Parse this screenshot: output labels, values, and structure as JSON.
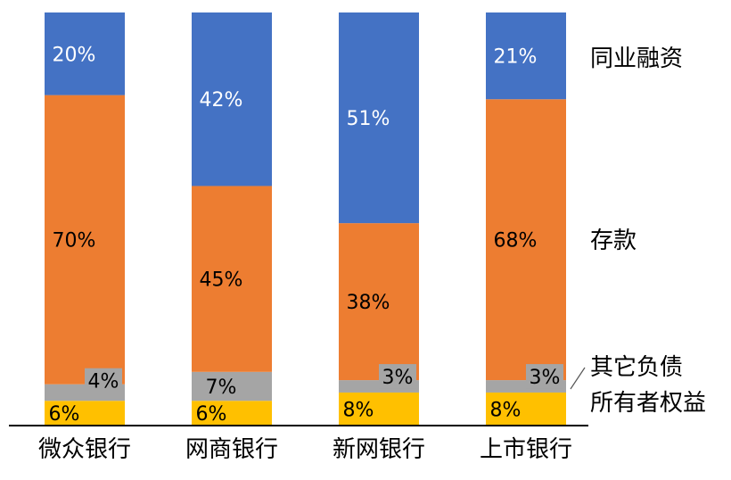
{
  "chart_data": {
    "type": "bar",
    "stacked": true,
    "percent_stacked": true,
    "categories": [
      "微众银行",
      "网商银行",
      "新网银行",
      "上市银行"
    ],
    "series": [
      {
        "name": "所有者权益",
        "values": [
          6,
          6,
          8,
          8
        ],
        "labels": [
          "6%",
          "6%",
          "8%",
          "8%"
        ],
        "color": "#FFC000"
      },
      {
        "name": "其它负债",
        "values": [
          4,
          7,
          3,
          3
        ],
        "labels": [
          "4%",
          "7%",
          "3%",
          "3%"
        ],
        "color": "#A5A5A5"
      },
      {
        "name": "存款",
        "values": [
          70,
          45,
          38,
          68
        ],
        "labels": [
          "70%",
          "45%",
          "38%",
          "68%"
        ],
        "color": "#ED7D31"
      },
      {
        "name": "同业融资",
        "values": [
          20,
          42,
          51,
          21
        ],
        "labels": [
          "20%",
          "42%",
          "51%",
          "21%"
        ],
        "color": "#4472C4"
      }
    ],
    "legend_placement": "right, next to series",
    "grid": false,
    "title": "",
    "xlabel": "",
    "ylabel": ""
  }
}
